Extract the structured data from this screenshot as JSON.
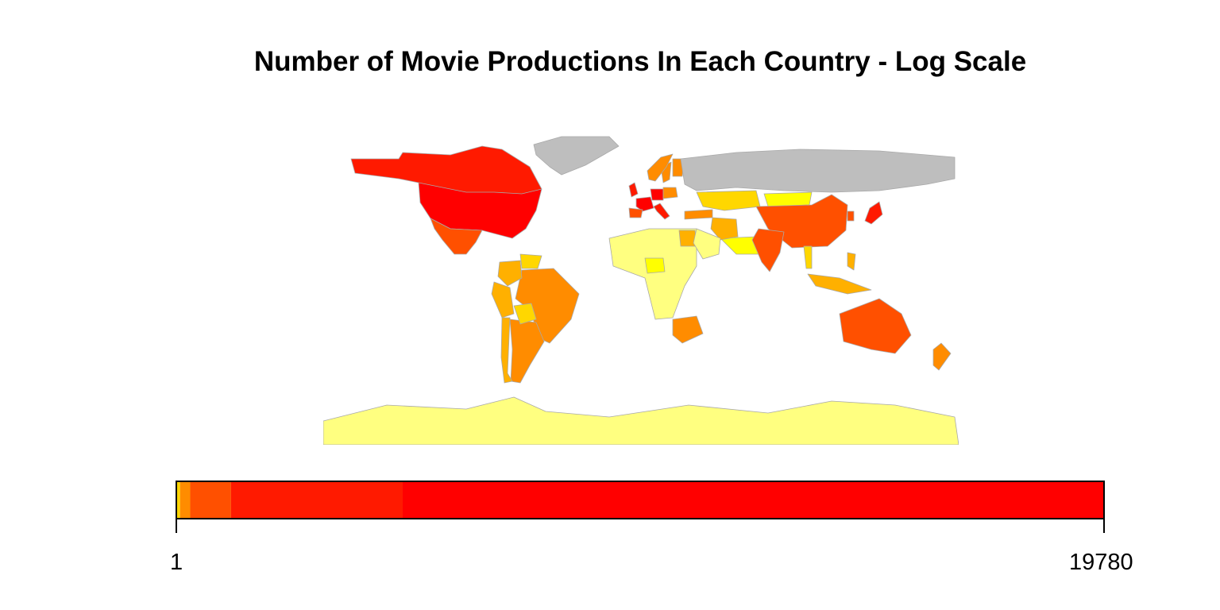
{
  "title": "Number of Movie Productions In Each Country - Log Scale",
  "colors": {
    "no_data": "#BEBEBE",
    "ocean": "#FFFFFF",
    "border": "#A9A9A9",
    "scale": [
      "#FFFF80",
      "#FFFF00",
      "#FFD700",
      "#FFB000",
      "#FF8C00",
      "#FF5000",
      "#FF1A00",
      "#FF0000"
    ]
  },
  "map_data": {
    "type": "choropleth",
    "projection": "equirectangular",
    "scale": "log",
    "countries": [
      {
        "name": "United States",
        "level": 8
      },
      {
        "name": "Canada",
        "level": 7
      },
      {
        "name": "Mexico",
        "level": 6
      },
      {
        "name": "Brazil",
        "level": 5
      },
      {
        "name": "Argentina",
        "level": 5
      },
      {
        "name": "Colombia",
        "level": 4
      },
      {
        "name": "Peru",
        "level": 4
      },
      {
        "name": "Chile",
        "level": 4
      },
      {
        "name": "Venezuela",
        "level": 3
      },
      {
        "name": "Bolivia",
        "level": 3
      },
      {
        "name": "United Kingdom",
        "level": 7
      },
      {
        "name": "France",
        "level": 8
      },
      {
        "name": "Germany",
        "level": 8
      },
      {
        "name": "Italy",
        "level": 7
      },
      {
        "name": "Spain",
        "level": 6
      },
      {
        "name": "Sweden",
        "level": 5
      },
      {
        "name": "Norway",
        "level": 5
      },
      {
        "name": "Finland",
        "level": 5
      },
      {
        "name": "Poland",
        "level": 5
      },
      {
        "name": "Russia",
        "level": 0
      },
      {
        "name": "Greenland",
        "level": 0
      },
      {
        "name": "Kazakhstan",
        "level": 3
      },
      {
        "name": "Mongolia",
        "level": 2
      },
      {
        "name": "China",
        "level": 6
      },
      {
        "name": "India",
        "level": 6
      },
      {
        "name": "Japan",
        "level": 7
      },
      {
        "name": "South Korea",
        "level": 6
      },
      {
        "name": "Turkey",
        "level": 5
      },
      {
        "name": "Iran",
        "level": 4
      },
      {
        "name": "Egypt",
        "level": 4
      },
      {
        "name": "Saudi Arabia",
        "level": 1
      },
      {
        "name": "Australia",
        "level": 6
      },
      {
        "name": "New Zealand",
        "level": 5
      },
      {
        "name": "South Africa",
        "level": 5
      },
      {
        "name": "Indonesia",
        "level": 4
      },
      {
        "name": "Philippines",
        "level": 4
      },
      {
        "name": "Thailand",
        "level": 3
      },
      {
        "name": "Nigeria",
        "level": 2
      },
      {
        "name": "Antarctica",
        "level": 1
      }
    ]
  },
  "legend": {
    "min_label": "1",
    "max_label": "19780",
    "bands": [
      {
        "from": 0.0,
        "to": 0.004,
        "color": "#FFD700"
      },
      {
        "from": 0.004,
        "to": 0.015,
        "color": "#FF8C00"
      },
      {
        "from": 0.015,
        "to": 0.059,
        "color": "#FF5000"
      },
      {
        "from": 0.059,
        "to": 0.244,
        "color": "#FF1A00"
      },
      {
        "from": 0.244,
        "to": 1.0,
        "color": "#FF0000"
      }
    ]
  }
}
